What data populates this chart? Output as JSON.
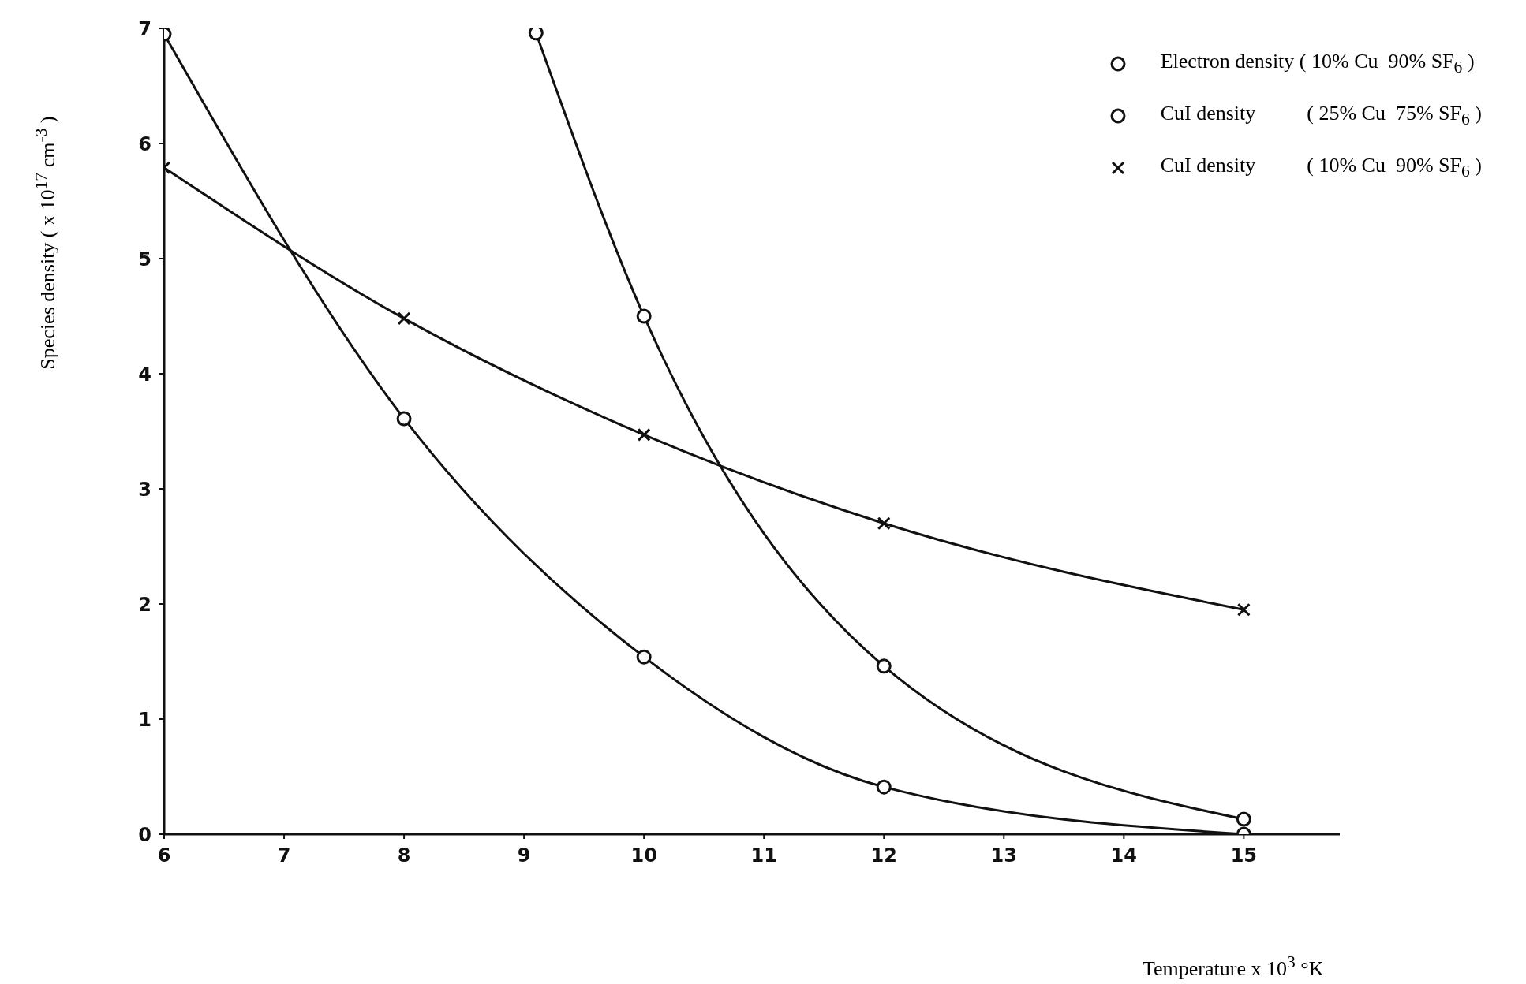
{
  "chart_data": {
    "type": "line",
    "xlabel": "Temperature x 10$^{3}$ °K",
    "ylabel": "Species density ( x 10$^{17}$ cm$^{-3}$ )",
    "xlim": [
      6,
      15.8
    ],
    "xticks": [
      6,
      7,
      8,
      9,
      10,
      11,
      12,
      13,
      14,
      15
    ],
    "ylim": [
      0,
      7
    ],
    "yticks": [
      0,
      1,
      2,
      3,
      4,
      5,
      6,
      7
    ],
    "grid": false,
    "legend": "top right",
    "series": [
      {
        "name": "Electron density ( 10% Cu  90% SF$_{6}$ )",
        "color": "#111111",
        "marker": "circle",
        "x": [
          6,
          8,
          10,
          12,
          15
        ],
        "values": [
          6.95,
          3.61,
          1.54,
          0.41,
          0.0
        ]
      },
      {
        "name": "CuI density          ( 25% Cu  75% SF$_{6}$ )",
        "color": "#111111",
        "marker": "circle",
        "x": [
          9.1,
          10,
          12,
          15
        ],
        "values": [
          6.96,
          4.5,
          1.46,
          0.13
        ]
      },
      {
        "name": "CuI density          ( 10% Cu  90% SF$_{6}$ )",
        "color": "#111111",
        "marker": "cross",
        "x": [
          6,
          8,
          10,
          12,
          15
        ],
        "values": [
          5.79,
          4.48,
          3.47,
          2.7,
          1.95
        ]
      }
    ]
  }
}
